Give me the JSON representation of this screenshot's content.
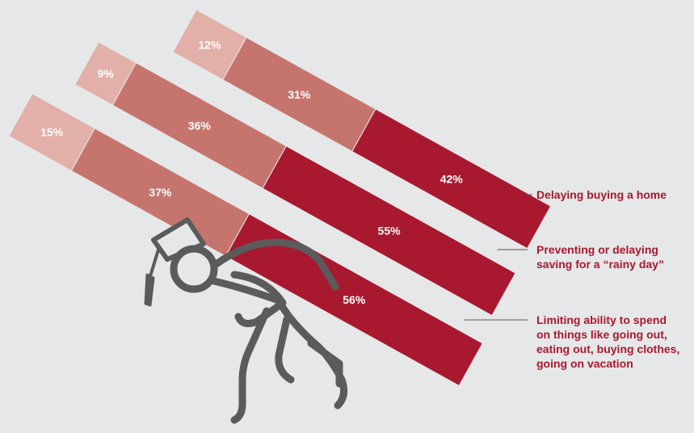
{
  "chart_data": {
    "type": "bar",
    "stacked": true,
    "orientation": "horizontal",
    "categories": [
      "Delaying buying a home",
      "Preventing or delaying saving for a “rainy day”",
      "Limiting ability to spend on things like going out, eating out, buying clothes, going on vacation"
    ],
    "category_label_lines": [
      [
        "Delaying buying a home"
      ],
      [
        "Preventing or delaying",
        "saving for a “rainy day”"
      ],
      [
        "Limiting ability to spend",
        "on things like going out,",
        "eating out, buying clothes,",
        "going on vacation"
      ]
    ],
    "series": [
      {
        "values": [
          12,
          9,
          15
        ],
        "labels": [
          "12%",
          "9%",
          "15%"
        ],
        "color": "#e2b0a8"
      },
      {
        "values": [
          31,
          36,
          37
        ],
        "labels": [
          "31%",
          "36%",
          "37%"
        ],
        "color": "#c6756e"
      },
      {
        "values": [
          42,
          55,
          56
        ],
        "labels": [
          "42%",
          "55%",
          "56%"
        ],
        "color": "#a8192f"
      }
    ],
    "colors": {
      "background": "#e6e7e8",
      "leader_line": "#555555",
      "figure": "#5b5b5b"
    }
  }
}
